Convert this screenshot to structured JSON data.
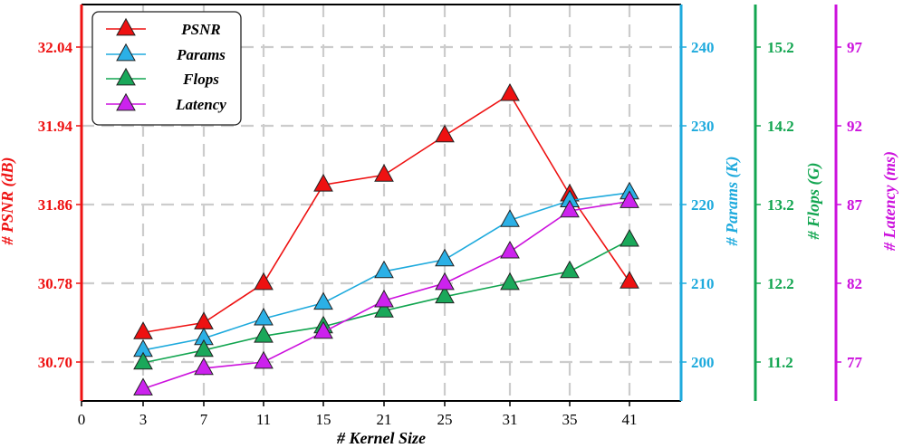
{
  "chart_data": {
    "type": "line",
    "xlabel": "# Kernel Size",
    "x_ticks": [
      "0",
      "3",
      "7",
      "11",
      "15",
      "21",
      "25",
      "31",
      "35",
      "41"
    ],
    "categories": [
      "3",
      "7",
      "11",
      "15",
      "21",
      "25",
      "31",
      "35",
      "41"
    ],
    "grid": true,
    "legend_position": "top-left",
    "axes": [
      {
        "id": "psnr",
        "label": "# PSNR (dB)",
        "color": "#ee1111",
        "ticks": [
          "30.70",
          "30.78",
          "31.86",
          "31.94",
          "32.04"
        ]
      },
      {
        "id": "params",
        "label": "# Params (K)",
        "color": "#1eaadd",
        "ticks": [
          "200",
          "210",
          "220",
          "230",
          "240"
        ]
      },
      {
        "id": "flops",
        "label": "# Flops (G)",
        "color": "#12a550",
        "ticks": [
          "11.2",
          "12.2",
          "13.2",
          "14.2",
          "15.2"
        ]
      },
      {
        "id": "latency",
        "label": "# Latency (ms)",
        "color": "#cc11dd",
        "ticks": [
          "77",
          "82",
          "87",
          "92",
          "97"
        ]
      }
    ],
    "series": [
      {
        "name": "PSNR",
        "axis": "psnr",
        "color": "#ee1111",
        "fill": "#ee1111",
        "values": [
          30.73,
          30.74,
          30.78,
          31.88,
          31.89,
          31.93,
          31.98,
          31.87,
          30.8
        ]
      },
      {
        "name": "Params",
        "axis": "params",
        "color": "#1eaadd",
        "fill": "#2bb0e6",
        "values": [
          201.5,
          203.0,
          205.5,
          207.5,
          211.5,
          213.0,
          218.0,
          220.5,
          221.5
        ]
      },
      {
        "name": "Flops",
        "axis": "flops",
        "color": "#12a550",
        "fill": "#1aa85a",
        "values": [
          11.19,
          11.35,
          11.53,
          11.65,
          11.85,
          12.03,
          12.2,
          12.35,
          12.75
        ]
      },
      {
        "name": "Latency",
        "axis": "latency",
        "color": "#cc11dd",
        "fill": "#cc22ee",
        "values": [
          75.3,
          76.6,
          77.0,
          78.9,
          80.9,
          82.0,
          84.0,
          86.6,
          87.2
        ]
      }
    ]
  }
}
